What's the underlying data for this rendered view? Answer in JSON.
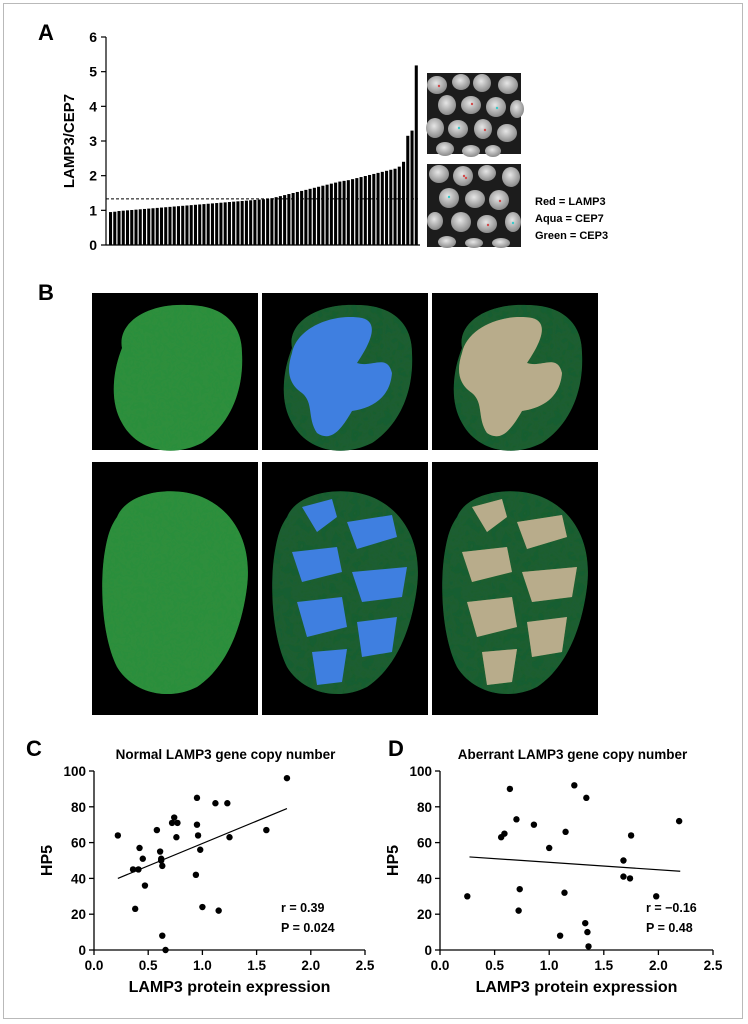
{
  "panels": {
    "a": "A",
    "b": "B",
    "c": "C",
    "d": "D"
  },
  "legend_a": [
    "Red = LAMP3",
    "Aqua = CEP7",
    "Green = CEP3"
  ],
  "colors": {
    "bar": "#000000",
    "tissue_green": "#2f8f3e",
    "mask_blue": "#3f7fe0",
    "overlay_yellow": "#d9c06a",
    "background": "#000000"
  },
  "chart_data": [
    {
      "id": "A",
      "type": "bar",
      "title": "",
      "xlabel": "",
      "ylabel": "LAMP3/CEP7",
      "ylim": [
        0,
        6
      ],
      "yticks": [
        0,
        1,
        2,
        3,
        4,
        5,
        6
      ],
      "threshold": 1.33,
      "values": [
        0.95,
        0.96,
        0.98,
        0.99,
        1.0,
        1.01,
        1.02,
        1.03,
        1.04,
        1.05,
        1.06,
        1.07,
        1.08,
        1.09,
        1.1,
        1.11,
        1.12,
        1.13,
        1.14,
        1.15,
        1.16,
        1.17,
        1.18,
        1.19,
        1.2,
        1.21,
        1.22,
        1.23,
        1.24,
        1.25,
        1.26,
        1.27,
        1.28,
        1.29,
        1.3,
        1.31,
        1.32,
        1.33,
        1.35,
        1.38,
        1.41,
        1.44,
        1.47,
        1.5,
        1.53,
        1.56,
        1.59,
        1.62,
        1.65,
        1.68,
        1.71,
        1.74,
        1.77,
        1.8,
        1.83,
        1.85,
        1.87,
        1.9,
        1.93,
        1.96,
        1.99,
        2.02,
        2.05,
        2.08,
        2.11,
        2.14,
        2.17,
        2.2,
        2.26,
        2.4,
        3.15,
        3.3,
        5.18
      ]
    },
    {
      "id": "C",
      "type": "scatter",
      "title": "Normal LAMP3 gene copy number",
      "xlabel": "LAMP3 protein expression",
      "ylabel": "HP5",
      "xlim": [
        0,
        2.5
      ],
      "ylim": [
        0,
        100
      ],
      "xticks": [
        "0.0",
        "0.5",
        "1.0",
        "1.5",
        "2.0",
        "2.5"
      ],
      "yticks": [
        "0",
        "20",
        "40",
        "60",
        "80",
        "100"
      ],
      "points": [
        [
          0.22,
          64
        ],
        [
          0.36,
          45
        ],
        [
          0.38,
          23
        ],
        [
          0.41,
          45
        ],
        [
          0.42,
          57
        ],
        [
          0.45,
          51
        ],
        [
          0.47,
          36
        ],
        [
          0.58,
          67
        ],
        [
          0.61,
          55
        ],
        [
          0.62,
          51
        ],
        [
          0.62,
          50
        ],
        [
          0.63,
          47
        ],
        [
          0.63,
          8
        ],
        [
          0.66,
          0
        ],
        [
          0.72,
          71
        ],
        [
          0.74,
          74
        ],
        [
          0.76,
          63
        ],
        [
          0.77,
          71
        ],
        [
          0.94,
          42
        ],
        [
          0.95,
          85
        ],
        [
          0.95,
          70
        ],
        [
          0.96,
          64
        ],
        [
          0.98,
          56
        ],
        [
          1.0,
          24
        ],
        [
          1.12,
          82
        ],
        [
          1.15,
          22
        ],
        [
          1.23,
          82
        ],
        [
          1.25,
          63
        ],
        [
          1.59,
          67
        ],
        [
          1.78,
          96
        ]
      ],
      "fit": [
        [
          0.22,
          40
        ],
        [
          1.78,
          79
        ]
      ],
      "annotations": [
        "r = 0.39",
        "P = 0.024"
      ]
    },
    {
      "id": "D",
      "type": "scatter",
      "title": "Aberrant LAMP3 gene copy number",
      "xlabel": "LAMP3 protein expression",
      "ylabel": "HP5",
      "xlim": [
        0,
        2.5
      ],
      "ylim": [
        0,
        100
      ],
      "xticks": [
        "0.0",
        "0.5",
        "1.0",
        "1.5",
        "2.0",
        "2.5"
      ],
      "yticks": [
        "0",
        "20",
        "40",
        "60",
        "80",
        "100"
      ],
      "points": [
        [
          0.25,
          30
        ],
        [
          0.56,
          63
        ],
        [
          0.59,
          65
        ],
        [
          0.64,
          90
        ],
        [
          0.7,
          73
        ],
        [
          0.72,
          22
        ],
        [
          0.73,
          34
        ],
        [
          0.86,
          70
        ],
        [
          1.0,
          57
        ],
        [
          1.1,
          8
        ],
        [
          1.14,
          32
        ],
        [
          1.15,
          66
        ],
        [
          1.23,
          92
        ],
        [
          1.33,
          15
        ],
        [
          1.34,
          85
        ],
        [
          1.35,
          10
        ],
        [
          1.36,
          2
        ],
        [
          1.68,
          50
        ],
        [
          1.68,
          41
        ],
        [
          1.74,
          40
        ],
        [
          1.75,
          64
        ],
        [
          1.98,
          30
        ],
        [
          2.19,
          72
        ]
      ],
      "fit": [
        [
          0.27,
          52
        ],
        [
          2.2,
          44
        ]
      ],
      "annotations": [
        "r = −0.16",
        "P = 0.48"
      ]
    }
  ]
}
